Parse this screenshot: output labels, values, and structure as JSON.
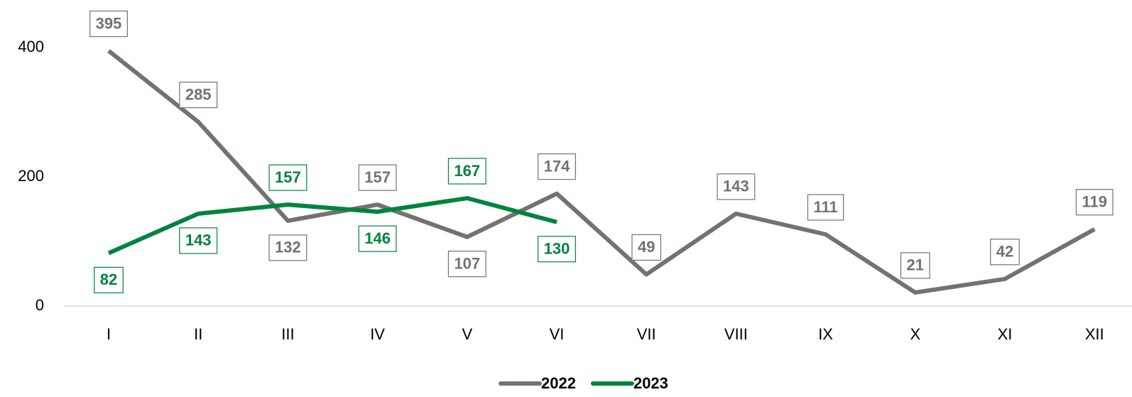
{
  "chart_data": {
    "type": "line",
    "categories": [
      "I",
      "II",
      "III",
      "IV",
      "V",
      "VI",
      "VII",
      "VIII",
      "IX",
      "X",
      "XI",
      "XII"
    ],
    "series": [
      {
        "name": "2022",
        "color": "#767171",
        "values": [
          395,
          285,
          132,
          157,
          107,
          174,
          49,
          143,
          111,
          21,
          42,
          119
        ]
      },
      {
        "name": "2023",
        "color": "#00843d",
        "values": [
          82,
          143,
          157,
          146,
          167,
          130,
          null,
          null,
          null,
          null,
          null,
          null
        ]
      }
    ],
    "ylim": [
      0,
      400
    ],
    "yticks": [
      0,
      200,
      400
    ],
    "grid": false,
    "legend": "bottom"
  }
}
